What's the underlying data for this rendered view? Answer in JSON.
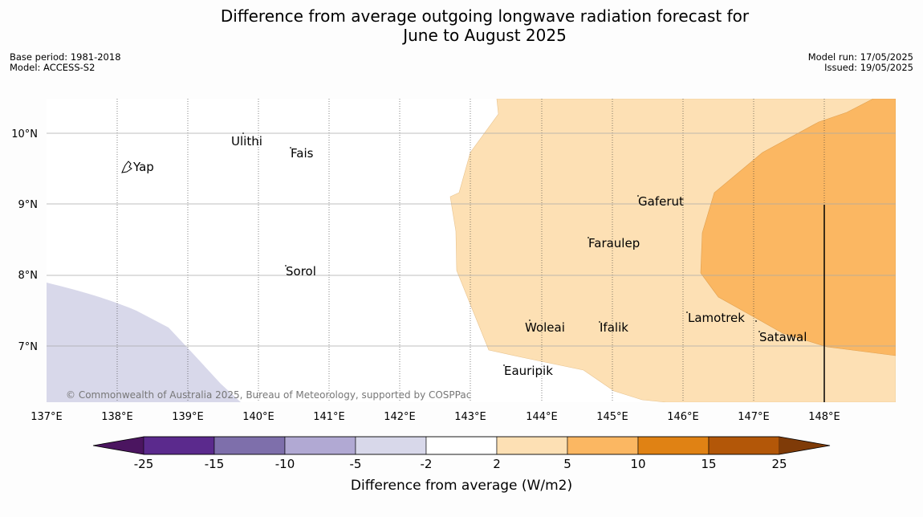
{
  "title_line1": "Difference from average outgoing longwave radiation forecast for",
  "title_line2": "June to August 2025",
  "base_period": "Base period: 1981-2018",
  "model": "Model: ACCESS-S2",
  "model_run": "Model run: 17/05/2025",
  "issued": "Issued: 19/05/2025",
  "credit": "© Commonwealth of Australia 2025, Bureau of Meteorology, supported by COSPPac",
  "colorbar_label": "Difference from average (W/m2)",
  "colorbar_ticks": [
    "-25",
    "-15",
    "-10",
    "-5",
    "-2",
    "2",
    "5",
    "10",
    "15",
    "25"
  ],
  "colors": {
    "bins": [
      "#4b1560",
      "#5b2a8d",
      "#7e6fab",
      "#b1a9d3",
      "#d8d8ea",
      "#ffffff",
      "#fde0b4",
      "#fbb762",
      "#e08214",
      "#b35708",
      "#7f3b08"
    ],
    "land_outline": "#000000"
  },
  "map": {
    "lon_labels": [
      "137°E",
      "138°E",
      "139°E",
      "140°E",
      "141°E",
      "142°E",
      "143°E",
      "144°E",
      "145°E",
      "146°E",
      "147°E",
      "148°E"
    ],
    "lat_labels": [
      "10°N",
      "9°N",
      "8°N",
      "7°N"
    ],
    "islands": [
      "Ulithi",
      "Fais",
      "Yap",
      "Gaferut",
      "Faraulep",
      "Sorol",
      "Lamotrek",
      "Woleai",
      "Ifalik",
      "Satawal",
      "Eauripik"
    ]
  }
}
